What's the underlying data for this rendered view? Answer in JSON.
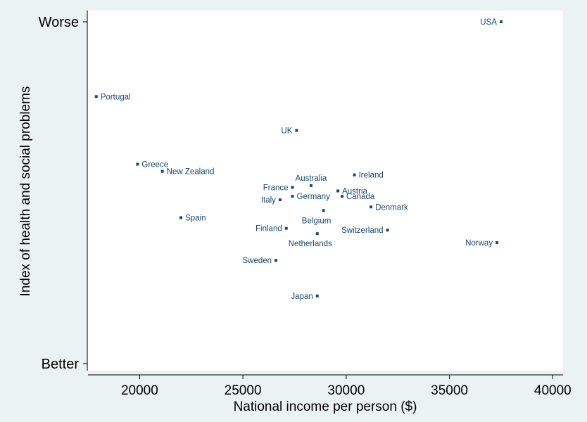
{
  "chart_data": {
    "type": "scatter",
    "title": "",
    "xlabel": "National income per person ($)",
    "ylabel": "Index of health and social problems",
    "xlim": [
      17500,
      40500
    ],
    "ylim": [
      0,
      100
    ],
    "x_ticks": [
      20000,
      25000,
      30000,
      35000,
      40000
    ],
    "y_tick_labels": [
      {
        "label": "Worse",
        "value": 96
      },
      {
        "label": "Better",
        "value": 0
      }
    ],
    "grid": false,
    "points": [
      {
        "label": "USA",
        "x": 37500,
        "y": 96,
        "side": "left"
      },
      {
        "label": "Portugal",
        "x": 17900,
        "y": 75,
        "side": "right"
      },
      {
        "label": "UK",
        "x": 27600,
        "y": 65.5,
        "side": "left"
      },
      {
        "label": "Greece",
        "x": 19900,
        "y": 56,
        "side": "right"
      },
      {
        "label": "New Zealand",
        "x": 21100,
        "y": 54,
        "side": "right"
      },
      {
        "label": "Ireland",
        "x": 30400,
        "y": 53,
        "side": "right"
      },
      {
        "label": "France",
        "x": 27400,
        "y": 49.5,
        "side": "left"
      },
      {
        "label": "Australia",
        "x": 28300,
        "y": 50,
        "side": "above"
      },
      {
        "label": "Austria",
        "x": 29600,
        "y": 48.5,
        "side": "right"
      },
      {
        "label": "Germany",
        "x": 27400,
        "y": 47,
        "side": "right"
      },
      {
        "label": "Canada",
        "x": 29800,
        "y": 47,
        "side": "right"
      },
      {
        "label": "Italy",
        "x": 26800,
        "y": 46,
        "side": "left"
      },
      {
        "label": "Denmark",
        "x": 31200,
        "y": 44,
        "side": "right"
      },
      {
        "label": "Belgium",
        "x": 28900,
        "y": 43,
        "side": "below"
      },
      {
        "label": "Spain",
        "x": 22000,
        "y": 41,
        "side": "right"
      },
      {
        "label": "Finland",
        "x": 27100,
        "y": 38,
        "side": "left"
      },
      {
        "label": "Switzerland",
        "x": 32000,
        "y": 37.5,
        "side": "left"
      },
      {
        "label": "Netherlands",
        "x": 28600,
        "y": 36.5,
        "side": "below"
      },
      {
        "label": "Norway",
        "x": 37300,
        "y": 34,
        "side": "left"
      },
      {
        "label": "Sweden",
        "x": 26600,
        "y": 29,
        "side": "left"
      },
      {
        "label": "Japan",
        "x": 28600,
        "y": 19,
        "side": "left"
      }
    ]
  },
  "colors": {
    "background": "#eaf2f3",
    "plot_background": "#ffffff",
    "marker": "#1a476f",
    "label": "#1a476f",
    "axis": "#000000"
  }
}
